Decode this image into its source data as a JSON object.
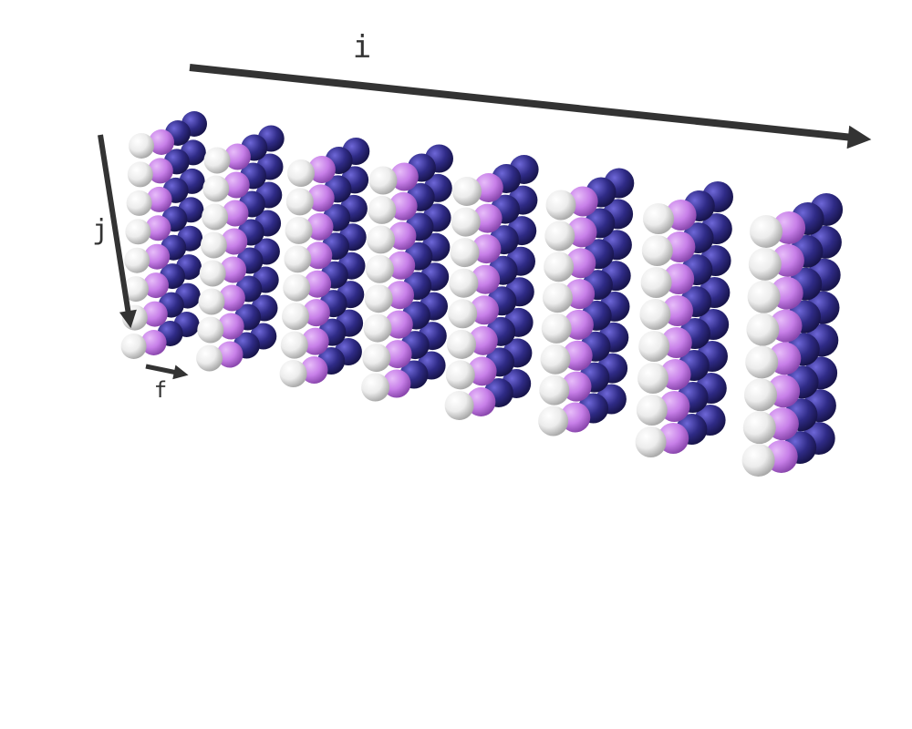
{
  "diagram": {
    "axes": {
      "i": {
        "label": "i"
      },
      "j": {
        "label": "j"
      },
      "f": {
        "label": "f"
      }
    },
    "grid": {
      "slices": 8,
      "rows": 8,
      "columns": 4
    },
    "colors": {
      "white": "#f4f4f4",
      "violet": "#c77fe8",
      "navy": "#2f2b86",
      "axis": "#333333"
    },
    "column_colors": [
      "white",
      "violet",
      "navy",
      "navy"
    ]
  }
}
